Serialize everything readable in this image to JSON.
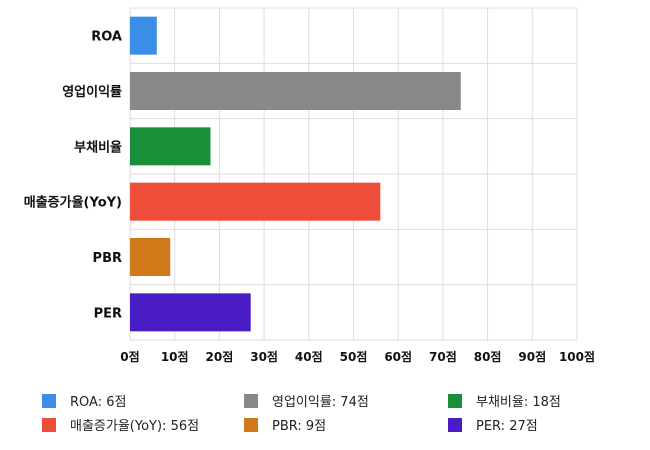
{
  "chart_data": {
    "type": "bar",
    "orientation": "horizontal",
    "categories": [
      "ROA",
      "영업이익률",
      "부채비율",
      "매출증가율(YoY)",
      "PBR",
      "PER"
    ],
    "values": [
      6,
      74,
      18,
      56,
      9,
      27
    ],
    "colors": [
      "#3b8ee8",
      "#888888",
      "#1a8f3a",
      "#ee4d3a",
      "#d07a1a",
      "#4a1cc4"
    ],
    "xlim": [
      0,
      100
    ],
    "xticks": [
      0,
      10,
      20,
      30,
      40,
      50,
      60,
      70,
      80,
      90,
      100
    ],
    "tick_suffix": "점",
    "grid": true,
    "legend_position": "bottom",
    "legend": [
      "ROA: 6점",
      "영업이익률: 74점",
      "부채비율: 18점",
      "매출증가율(YoY): 56점",
      "PBR: 9점",
      "PER: 27점"
    ],
    "title": "",
    "xlabel": "",
    "ylabel": ""
  }
}
